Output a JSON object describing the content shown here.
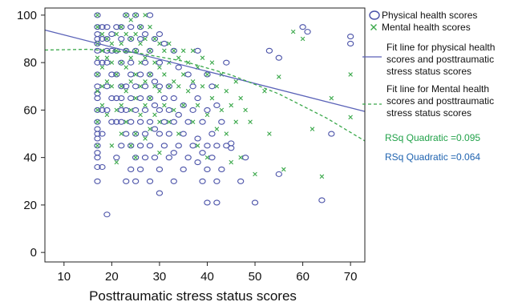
{
  "chart_data": {
    "type": "scatter",
    "xlabel": "Posttraumatic stress status scores",
    "ylabel": "",
    "xlim": [
      6,
      73
    ],
    "ylim": [
      -4,
      103
    ],
    "xticks": [
      10,
      20,
      30,
      40,
      50,
      60,
      70
    ],
    "yticks": [
      0,
      20,
      40,
      60,
      80,
      100
    ],
    "grid": false,
    "legend_position": "top-right",
    "colors": {
      "physical": "#4a52a8",
      "mental": "#3aa84a",
      "physical_fit": "#5a62b8",
      "mental_fit": "#3aa84a",
      "rsq_mental": "#22a24a",
      "rsq_physical": "#1f63b0"
    },
    "series": [
      {
        "name": "Physical health scores",
        "marker": "circle",
        "points": [
          [
            17,
            100
          ],
          [
            17,
            95
          ],
          [
            17,
            92
          ],
          [
            17,
            90
          ],
          [
            17,
            88
          ],
          [
            17,
            85
          ],
          [
            17,
            80
          ],
          [
            17,
            75
          ],
          [
            17,
            70
          ],
          [
            17,
            67
          ],
          [
            17,
            65
          ],
          [
            17,
            60
          ],
          [
            17,
            55
          ],
          [
            17,
            52
          ],
          [
            17,
            50
          ],
          [
            17,
            48
          ],
          [
            17,
            45
          ],
          [
            17,
            42
          ],
          [
            17,
            40
          ],
          [
            17,
            36
          ],
          [
            17,
            30
          ],
          [
            18,
            36
          ],
          [
            18,
            50
          ],
          [
            18,
            60
          ],
          [
            18,
            80
          ],
          [
            18,
            90
          ],
          [
            18,
            95
          ],
          [
            19,
            16
          ],
          [
            19,
            60
          ],
          [
            19,
            70
          ],
          [
            19,
            80
          ],
          [
            19,
            85
          ],
          [
            19,
            90
          ],
          [
            19,
            95
          ],
          [
            20,
            55
          ],
          [
            20,
            65
          ],
          [
            20,
            75
          ],
          [
            20,
            85
          ],
          [
            20,
            92
          ],
          [
            21,
            40
          ],
          [
            21,
            55
          ],
          [
            21,
            65
          ],
          [
            21,
            75
          ],
          [
            21,
            85
          ],
          [
            21,
            95
          ],
          [
            22,
            45
          ],
          [
            22,
            55
          ],
          [
            22,
            60
          ],
          [
            22,
            65
          ],
          [
            22,
            70
          ],
          [
            22,
            80
          ],
          [
            22,
            90
          ],
          [
            22,
            95
          ],
          [
            23,
            30
          ],
          [
            23,
            50
          ],
          [
            23,
            60
          ],
          [
            23,
            70
          ],
          [
            23,
            85
          ],
          [
            23,
            100
          ],
          [
            24,
            35
          ],
          [
            24,
            45
          ],
          [
            24,
            55
          ],
          [
            24,
            65
          ],
          [
            24,
            75
          ],
          [
            24,
            80
          ],
          [
            24,
            90
          ],
          [
            24,
            95
          ],
          [
            25,
            30
          ],
          [
            25,
            40
          ],
          [
            25,
            50
          ],
          [
            25,
            60
          ],
          [
            25,
            70
          ],
          [
            25,
            85
          ],
          [
            25,
            100
          ],
          [
            26,
            35
          ],
          [
            26,
            45
          ],
          [
            26,
            55
          ],
          [
            26,
            65
          ],
          [
            26,
            75
          ],
          [
            26,
            90
          ],
          [
            26,
            95
          ],
          [
            27,
            40
          ],
          [
            27,
            50
          ],
          [
            27,
            60
          ],
          [
            27,
            70
          ],
          [
            27,
            80
          ],
          [
            27,
            92
          ],
          [
            28,
            30
          ],
          [
            28,
            45
          ],
          [
            28,
            55
          ],
          [
            28,
            65
          ],
          [
            28,
            75
          ],
          [
            28,
            85
          ],
          [
            28,
            100
          ],
          [
            29,
            40
          ],
          [
            29,
            52
          ],
          [
            29,
            62
          ],
          [
            29,
            72
          ],
          [
            29,
            90
          ],
          [
            30,
            25
          ],
          [
            30,
            35
          ],
          [
            30,
            50
          ],
          [
            30,
            60
          ],
          [
            30,
            70
          ],
          [
            30,
            80
          ],
          [
            30,
            92
          ],
          [
            31,
            45
          ],
          [
            31,
            55
          ],
          [
            31,
            65
          ],
          [
            31,
            88
          ],
          [
            32,
            40
          ],
          [
            32,
            50
          ],
          [
            32,
            60
          ],
          [
            32,
            70
          ],
          [
            33,
            30
          ],
          [
            33,
            42
          ],
          [
            33,
            55
          ],
          [
            33,
            65
          ],
          [
            33,
            85
          ],
          [
            34,
            45
          ],
          [
            34,
            58
          ],
          [
            34,
            78
          ],
          [
            35,
            35
          ],
          [
            35,
            50
          ],
          [
            35,
            62
          ],
          [
            36,
            40
          ],
          [
            36,
            55
          ],
          [
            36,
            75
          ],
          [
            37,
            45
          ],
          [
            37,
            60
          ],
          [
            37,
            70
          ],
          [
            38,
            38
          ],
          [
            38,
            48
          ],
          [
            38,
            65
          ],
          [
            38,
            85
          ],
          [
            39,
            30
          ],
          [
            39,
            42
          ],
          [
            39,
            55
          ],
          [
            40,
            21
          ],
          [
            40,
            35
          ],
          [
            40,
            45
          ],
          [
            40,
            60
          ],
          [
            40,
            75
          ],
          [
            41,
            40
          ],
          [
            41,
            50
          ],
          [
            41,
            70
          ],
          [
            42,
            21
          ],
          [
            42,
            30
          ],
          [
            42,
            45
          ],
          [
            42,
            62
          ],
          [
            43,
            35
          ],
          [
            43,
            55
          ],
          [
            44,
            45
          ],
          [
            44,
            80
          ],
          [
            45,
            44
          ],
          [
            45,
            46
          ],
          [
            47,
            30
          ],
          [
            48,
            40
          ],
          [
            50,
            21
          ],
          [
            53,
            85
          ],
          [
            55,
            82
          ],
          [
            55,
            33
          ],
          [
            60,
            95
          ],
          [
            61,
            93
          ],
          [
            64,
            22
          ],
          [
            66,
            50
          ],
          [
            70,
            91
          ],
          [
            70,
            88
          ]
        ]
      },
      {
        "name": "Mental health scores",
        "marker": "x",
        "points": [
          [
            17,
            100
          ],
          [
            17,
            95
          ],
          [
            17,
            88
          ],
          [
            17,
            82
          ],
          [
            17,
            75
          ],
          [
            17,
            68
          ],
          [
            17,
            60
          ],
          [
            17,
            55
          ],
          [
            17,
            45
          ],
          [
            18,
            92
          ],
          [
            18,
            85
          ],
          [
            18,
            78
          ],
          [
            18,
            70
          ],
          [
            18,
            62
          ],
          [
            19,
            90
          ],
          [
            19,
            82
          ],
          [
            19,
            72
          ],
          [
            19,
            58
          ],
          [
            20,
            88
          ],
          [
            20,
            80
          ],
          [
            20,
            70
          ],
          [
            20,
            45
          ],
          [
            21,
            92
          ],
          [
            21,
            85
          ],
          [
            21,
            75
          ],
          [
            21,
            60
          ],
          [
            21,
            38
          ],
          [
            22,
            95
          ],
          [
            22,
            88
          ],
          [
            22,
            80
          ],
          [
            22,
            70
          ],
          [
            22,
            62
          ],
          [
            22,
            50
          ],
          [
            23,
            100
          ],
          [
            23,
            92
          ],
          [
            23,
            85
          ],
          [
            23,
            78
          ],
          [
            23,
            68
          ],
          [
            23,
            55
          ],
          [
            24,
            98
          ],
          [
            24,
            90
          ],
          [
            24,
            82
          ],
          [
            24,
            72
          ],
          [
            24,
            60
          ],
          [
            24,
            45
          ],
          [
            25,
            100
          ],
          [
            25,
            92
          ],
          [
            25,
            85
          ],
          [
            25,
            75
          ],
          [
            25,
            65
          ],
          [
            25,
            50
          ],
          [
            25,
            40
          ],
          [
            26,
            95
          ],
          [
            26,
            88
          ],
          [
            26,
            80
          ],
          [
            26,
            70
          ],
          [
            26,
            58
          ],
          [
            27,
            100
          ],
          [
            27,
            90
          ],
          [
            27,
            82
          ],
          [
            27,
            72
          ],
          [
            27,
            62
          ],
          [
            27,
            48
          ],
          [
            28,
            95
          ],
          [
            28,
            85
          ],
          [
            28,
            75
          ],
          [
            28,
            65
          ],
          [
            28,
            52
          ],
          [
            29,
            90
          ],
          [
            29,
            80
          ],
          [
            29,
            70
          ],
          [
            29,
            58
          ],
          [
            30,
            88
          ],
          [
            30,
            78
          ],
          [
            30,
            68
          ],
          [
            30,
            55
          ],
          [
            30,
            42
          ],
          [
            31,
            85
          ],
          [
            31,
            75
          ],
          [
            31,
            62
          ],
          [
            32,
            88
          ],
          [
            32,
            80
          ],
          [
            32,
            70
          ],
          [
            32,
            55
          ],
          [
            33,
            85
          ],
          [
            33,
            72
          ],
          [
            33,
            60
          ],
          [
            34,
            82
          ],
          [
            34,
            70
          ],
          [
            34,
            50
          ],
          [
            35,
            85
          ],
          [
            35,
            75
          ],
          [
            35,
            62
          ],
          [
            36,
            80
          ],
          [
            36,
            68
          ],
          [
            37,
            85
          ],
          [
            37,
            72
          ],
          [
            37,
            55
          ],
          [
            38,
            78
          ],
          [
            38,
            62
          ],
          [
            38,
            45
          ],
          [
            39,
            82
          ],
          [
            39,
            70
          ],
          [
            40,
            75
          ],
          [
            40,
            58
          ],
          [
            40,
            40
          ],
          [
            41,
            80
          ],
          [
            41,
            65
          ],
          [
            42,
            70
          ],
          [
            42,
            52
          ],
          [
            43,
            75
          ],
          [
            43,
            60
          ],
          [
            44,
            68
          ],
          [
            44,
            50
          ],
          [
            45,
            62
          ],
          [
            45,
            38
          ],
          [
            46,
            72
          ],
          [
            46,
            55
          ],
          [
            47,
            65
          ],
          [
            47,
            40
          ],
          [
            48,
            60
          ],
          [
            49,
            55
          ],
          [
            50,
            33
          ],
          [
            52,
            68
          ],
          [
            53,
            50
          ],
          [
            55,
            74
          ],
          [
            56,
            35
          ],
          [
            58,
            93
          ],
          [
            60,
            90
          ],
          [
            62,
            52
          ],
          [
            64,
            32
          ],
          [
            66,
            65
          ],
          [
            70,
            75
          ],
          [
            70,
            57
          ]
        ]
      }
    ],
    "fit_lines": [
      {
        "series": "Physical health scores",
        "kind": "linear",
        "points": [
          [
            6,
            93.7
          ],
          [
            73,
            59.4
          ]
        ]
      },
      {
        "series": "Mental health scores",
        "kind": "quadratic",
        "points": [
          [
            6,
            85.3
          ],
          [
            15,
            85.6
          ],
          [
            25,
            84.2
          ],
          [
            35,
            80.6
          ],
          [
            45,
            74.8
          ],
          [
            55,
            66.8
          ],
          [
            65,
            56.6
          ],
          [
            73,
            47
          ]
        ]
      }
    ],
    "legend": [
      {
        "label": "Physical health scores",
        "marker": "circle"
      },
      {
        "label": "Mental health scores",
        "marker": "x"
      }
    ],
    "annotations": [
      {
        "label": "Fit line for physical health scores and posttraumatic stress status scores",
        "lines": [
          "Fit line for physical health",
          "scores and posttraumatic",
          "stress status scores"
        ]
      },
      {
        "label": "Fit line for Mental health scores and posttraumatic stress status scores",
        "lines": [
          "Fit line for Mental health",
          "scores and posttraumatic",
          "stress status scores"
        ]
      }
    ],
    "rsq": [
      {
        "label": "RSq Quadratic =0.095"
      },
      {
        "label": "RSq Quadratic =0.064"
      }
    ]
  }
}
